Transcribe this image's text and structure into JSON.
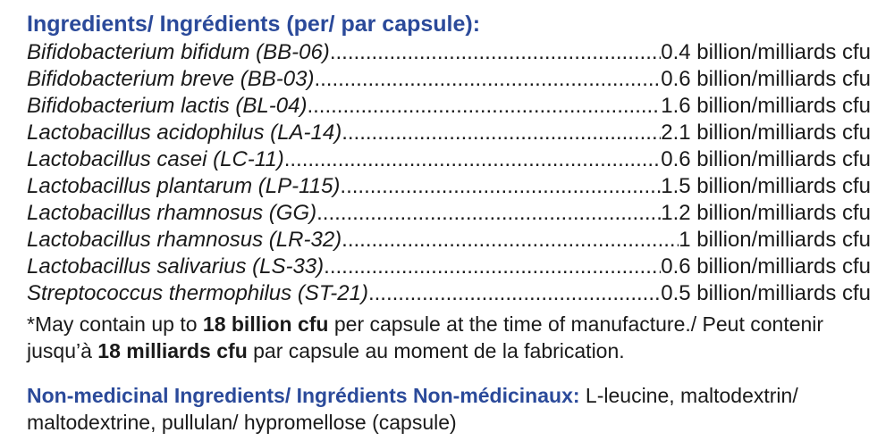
{
  "heading": "Ingredients/ Ingrédients (per/ par capsule):",
  "ingredients": [
    {
      "name": "Bifidobacterium bifidum (BB-06)",
      "value": "0.4 billion/milliards cfu"
    },
    {
      "name": "Bifidobacterium breve (BB-03)",
      "value": "0.6 billion/milliards cfu"
    },
    {
      "name": "Bifidobacterium lactis (BL-04)",
      "value": "1.6 billion/milliards cfu"
    },
    {
      "name": "Lactobacillus acidophilus (LA-14)",
      "value": "2.1 billion/milliards cfu"
    },
    {
      "name": "Lactobacillus casei (LC-11)",
      "value": "0.6  billion/milliards cfu"
    },
    {
      "name": "Lactobacillus plantarum (LP-115)",
      "value": "1.5 billion/milliards cfu"
    },
    {
      "name": "Lactobacillus rhamnosus (GG)",
      "value": "1.2  billion/milliards cfu"
    },
    {
      "name": "Lactobacillus rhamnosus (LR-32)",
      "value": "1 billion/milliards cfu"
    },
    {
      "name": "Lactobacillus salivarius (LS-33)",
      "value": "0.6 billion/milliards cfu"
    },
    {
      "name": "Streptococcus thermophilus (ST-21)",
      "value": "0.5 billion/milliards cfu"
    }
  ],
  "note": {
    "part1": "*May contain up to ",
    "bold1": "18 billion cfu",
    "part2": " per capsule at the time of manufacture./ Peut contenir jusqu’à ",
    "bold2": "18 milliards cfu",
    "part3": " par capsule au moment de la fabrication."
  },
  "non_medicinal": {
    "label": "Non-medicinal Ingredients/ Ingrédients Non-médicinaux:",
    "text": " L-leucine, maltodextrin/ maltodextrine, pullulan/ hypromellose (capsule)"
  },
  "colors": {
    "heading_blue": "#2b4a9a",
    "text": "#1a1a1a"
  }
}
